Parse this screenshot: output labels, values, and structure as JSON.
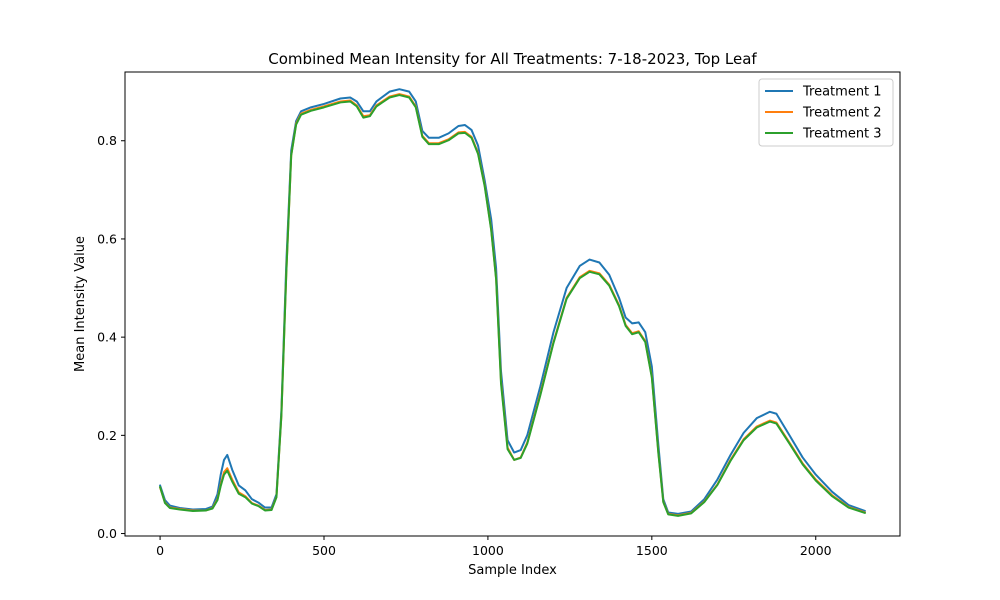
{
  "chart_data": {
    "type": "line",
    "title": "Combined Mean Intensity for All Treatments: 7-18-2023, Top Leaf",
    "xlabel": "Sample Index",
    "ylabel": "Mean Intensity Value",
    "xlim": [
      -107,
      2257
    ],
    "ylim": [
      -0.005,
      0.94
    ],
    "xticks": [
      0,
      500,
      1000,
      1500,
      2000
    ],
    "xtick_labels": [
      "0",
      "500",
      "1000",
      "1500",
      "2000"
    ],
    "yticks": [
      0.0,
      0.2,
      0.4,
      0.6,
      0.8
    ],
    "ytick_labels": [
      "0.0",
      "0.2",
      "0.4",
      "0.6",
      "0.8"
    ],
    "grid": false,
    "legend_position": "top-right",
    "series": [
      {
        "name": "Treatment 1",
        "color": "#1f77b4",
        "points": [
          [
            0,
            0.098
          ],
          [
            15,
            0.068
          ],
          [
            30,
            0.057
          ],
          [
            60,
            0.052
          ],
          [
            100,
            0.049
          ],
          [
            140,
            0.05
          ],
          [
            160,
            0.055
          ],
          [
            175,
            0.08
          ],
          [
            185,
            0.12
          ],
          [
            195,
            0.15
          ],
          [
            205,
            0.16
          ],
          [
            220,
            0.13
          ],
          [
            240,
            0.098
          ],
          [
            260,
            0.088
          ],
          [
            280,
            0.07
          ],
          [
            300,
            0.063
          ],
          [
            320,
            0.053
          ],
          [
            340,
            0.053
          ],
          [
            355,
            0.08
          ],
          [
            370,
            0.25
          ],
          [
            385,
            0.55
          ],
          [
            400,
            0.78
          ],
          [
            415,
            0.84
          ],
          [
            430,
            0.86
          ],
          [
            460,
            0.868
          ],
          [
            500,
            0.875
          ],
          [
            550,
            0.886
          ],
          [
            580,
            0.888
          ],
          [
            600,
            0.88
          ],
          [
            620,
            0.86
          ],
          [
            640,
            0.86
          ],
          [
            660,
            0.88
          ],
          [
            700,
            0.9
          ],
          [
            730,
            0.905
          ],
          [
            760,
            0.9
          ],
          [
            780,
            0.88
          ],
          [
            800,
            0.82
          ],
          [
            820,
            0.806
          ],
          [
            850,
            0.806
          ],
          [
            880,
            0.815
          ],
          [
            910,
            0.83
          ],
          [
            930,
            0.832
          ],
          [
            950,
            0.822
          ],
          [
            970,
            0.79
          ],
          [
            990,
            0.72
          ],
          [
            1010,
            0.64
          ],
          [
            1025,
            0.54
          ],
          [
            1040,
            0.33
          ],
          [
            1060,
            0.19
          ],
          [
            1080,
            0.165
          ],
          [
            1100,
            0.17
          ],
          [
            1120,
            0.2
          ],
          [
            1160,
            0.3
          ],
          [
            1200,
            0.41
          ],
          [
            1240,
            0.5
          ],
          [
            1280,
            0.545
          ],
          [
            1310,
            0.558
          ],
          [
            1340,
            0.552
          ],
          [
            1370,
            0.527
          ],
          [
            1400,
            0.48
          ],
          [
            1420,
            0.44
          ],
          [
            1440,
            0.428
          ],
          [
            1460,
            0.43
          ],
          [
            1480,
            0.41
          ],
          [
            1500,
            0.34
          ],
          [
            1520,
            0.18
          ],
          [
            1535,
            0.07
          ],
          [
            1550,
            0.043
          ],
          [
            1580,
            0.04
          ],
          [
            1620,
            0.045
          ],
          [
            1660,
            0.07
          ],
          [
            1700,
            0.11
          ],
          [
            1740,
            0.16
          ],
          [
            1780,
            0.205
          ],
          [
            1820,
            0.235
          ],
          [
            1860,
            0.248
          ],
          [
            1880,
            0.244
          ],
          [
            1920,
            0.2
          ],
          [
            1960,
            0.155
          ],
          [
            2000,
            0.12
          ],
          [
            2050,
            0.085
          ],
          [
            2100,
            0.058
          ],
          [
            2150,
            0.046
          ]
        ]
      },
      {
        "name": "Treatment 2",
        "color": "#ff7f0e",
        "points": [
          [
            0,
            0.094
          ],
          [
            15,
            0.063
          ],
          [
            30,
            0.053
          ],
          [
            60,
            0.05
          ],
          [
            100,
            0.047
          ],
          [
            140,
            0.047
          ],
          [
            160,
            0.052
          ],
          [
            175,
            0.07
          ],
          [
            185,
            0.1
          ],
          [
            195,
            0.125
          ],
          [
            205,
            0.133
          ],
          [
            220,
            0.11
          ],
          [
            240,
            0.084
          ],
          [
            260,
            0.076
          ],
          [
            280,
            0.062
          ],
          [
            300,
            0.057
          ],
          [
            320,
            0.048
          ],
          [
            340,
            0.049
          ],
          [
            355,
            0.075
          ],
          [
            370,
            0.24
          ],
          [
            385,
            0.53
          ],
          [
            400,
            0.77
          ],
          [
            415,
            0.835
          ],
          [
            430,
            0.855
          ],
          [
            460,
            0.863
          ],
          [
            500,
            0.87
          ],
          [
            550,
            0.88
          ],
          [
            580,
            0.882
          ],
          [
            600,
            0.872
          ],
          [
            620,
            0.85
          ],
          [
            640,
            0.852
          ],
          [
            660,
            0.872
          ],
          [
            700,
            0.89
          ],
          [
            730,
            0.895
          ],
          [
            760,
            0.89
          ],
          [
            780,
            0.87
          ],
          [
            800,
            0.81
          ],
          [
            820,
            0.795
          ],
          [
            850,
            0.795
          ],
          [
            880,
            0.803
          ],
          [
            910,
            0.817
          ],
          [
            930,
            0.818
          ],
          [
            950,
            0.808
          ],
          [
            970,
            0.775
          ],
          [
            990,
            0.71
          ],
          [
            1010,
            0.62
          ],
          [
            1025,
            0.52
          ],
          [
            1040,
            0.31
          ],
          [
            1060,
            0.175
          ],
          [
            1080,
            0.15
          ],
          [
            1100,
            0.155
          ],
          [
            1120,
            0.185
          ],
          [
            1160,
            0.285
          ],
          [
            1200,
            0.39
          ],
          [
            1240,
            0.48
          ],
          [
            1280,
            0.522
          ],
          [
            1310,
            0.535
          ],
          [
            1340,
            0.53
          ],
          [
            1370,
            0.507
          ],
          [
            1400,
            0.465
          ],
          [
            1420,
            0.425
          ],
          [
            1440,
            0.408
          ],
          [
            1460,
            0.412
          ],
          [
            1480,
            0.392
          ],
          [
            1500,
            0.32
          ],
          [
            1520,
            0.165
          ],
          [
            1535,
            0.065
          ],
          [
            1550,
            0.04
          ],
          [
            1580,
            0.037
          ],
          [
            1620,
            0.042
          ],
          [
            1660,
            0.065
          ],
          [
            1700,
            0.1
          ],
          [
            1740,
            0.15
          ],
          [
            1780,
            0.192
          ],
          [
            1820,
            0.218
          ],
          [
            1860,
            0.23
          ],
          [
            1880,
            0.226
          ],
          [
            1920,
            0.185
          ],
          [
            1960,
            0.143
          ],
          [
            2000,
            0.11
          ],
          [
            2050,
            0.078
          ],
          [
            2100,
            0.054
          ],
          [
            2150,
            0.043
          ]
        ]
      },
      {
        "name": "Treatment 3",
        "color": "#2ca02c",
        "points": [
          [
            0,
            0.095
          ],
          [
            15,
            0.062
          ],
          [
            30,
            0.052
          ],
          [
            60,
            0.049
          ],
          [
            100,
            0.046
          ],
          [
            140,
            0.047
          ],
          [
            160,
            0.051
          ],
          [
            175,
            0.068
          ],
          [
            185,
            0.097
          ],
          [
            195,
            0.12
          ],
          [
            205,
            0.128
          ],
          [
            220,
            0.106
          ],
          [
            240,
            0.081
          ],
          [
            260,
            0.074
          ],
          [
            280,
            0.061
          ],
          [
            300,
            0.056
          ],
          [
            320,
            0.047
          ],
          [
            340,
            0.048
          ],
          [
            355,
            0.074
          ],
          [
            370,
            0.24
          ],
          [
            385,
            0.53
          ],
          [
            400,
            0.77
          ],
          [
            415,
            0.833
          ],
          [
            430,
            0.853
          ],
          [
            460,
            0.861
          ],
          [
            500,
            0.868
          ],
          [
            550,
            0.878
          ],
          [
            580,
            0.88
          ],
          [
            600,
            0.87
          ],
          [
            620,
            0.847
          ],
          [
            640,
            0.85
          ],
          [
            660,
            0.87
          ],
          [
            700,
            0.888
          ],
          [
            730,
            0.893
          ],
          [
            760,
            0.888
          ],
          [
            780,
            0.868
          ],
          [
            800,
            0.808
          ],
          [
            820,
            0.793
          ],
          [
            850,
            0.793
          ],
          [
            880,
            0.801
          ],
          [
            910,
            0.815
          ],
          [
            930,
            0.816
          ],
          [
            950,
            0.806
          ],
          [
            970,
            0.773
          ],
          [
            990,
            0.708
          ],
          [
            1010,
            0.618
          ],
          [
            1025,
            0.518
          ],
          [
            1040,
            0.305
          ],
          [
            1060,
            0.172
          ],
          [
            1080,
            0.15
          ],
          [
            1100,
            0.154
          ],
          [
            1120,
            0.183
          ],
          [
            1160,
            0.282
          ],
          [
            1200,
            0.388
          ],
          [
            1240,
            0.478
          ],
          [
            1280,
            0.52
          ],
          [
            1310,
            0.533
          ],
          [
            1340,
            0.528
          ],
          [
            1370,
            0.505
          ],
          [
            1400,
            0.463
          ],
          [
            1420,
            0.423
          ],
          [
            1440,
            0.406
          ],
          [
            1460,
            0.41
          ],
          [
            1480,
            0.39
          ],
          [
            1500,
            0.318
          ],
          [
            1520,
            0.163
          ],
          [
            1535,
            0.064
          ],
          [
            1550,
            0.039
          ],
          [
            1580,
            0.036
          ],
          [
            1620,
            0.041
          ],
          [
            1660,
            0.064
          ],
          [
            1700,
            0.099
          ],
          [
            1740,
            0.148
          ],
          [
            1780,
            0.19
          ],
          [
            1820,
            0.216
          ],
          [
            1860,
            0.228
          ],
          [
            1880,
            0.224
          ],
          [
            1920,
            0.183
          ],
          [
            1960,
            0.141
          ],
          [
            2000,
            0.108
          ],
          [
            2050,
            0.076
          ],
          [
            2100,
            0.053
          ],
          [
            2150,
            0.042
          ]
        ]
      }
    ]
  }
}
